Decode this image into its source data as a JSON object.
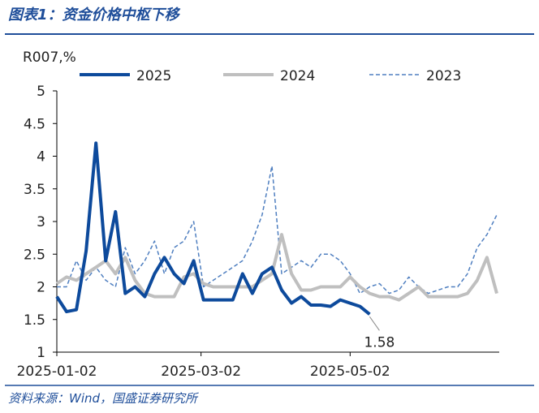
{
  "chart_data": {
    "type": "line",
    "title": "图表1：资金价格中枢下移",
    "y_label": "R007,%",
    "source": "资料来源：Wind，国盛证券研究所",
    "annotation": {
      "text": "1.58",
      "series": 0,
      "index": 32
    },
    "x": [
      "2025-01-02",
      "2025-01-06",
      "2025-01-10",
      "2025-01-14",
      "2025-01-18",
      "2025-01-22",
      "2025-01-26",
      "2025-01-30",
      "2025-02-03",
      "2025-02-07",
      "2025-02-11",
      "2025-02-15",
      "2025-02-19",
      "2025-02-23",
      "2025-02-27",
      "2025-03-03",
      "2025-03-07",
      "2025-03-11",
      "2025-03-15",
      "2025-03-19",
      "2025-03-23",
      "2025-03-27",
      "2025-03-31",
      "2025-04-04",
      "2025-04-08",
      "2025-04-12",
      "2025-04-16",
      "2025-04-20",
      "2025-04-24",
      "2025-04-28",
      "2025-05-02",
      "2025-05-06",
      "2025-05-10",
      "2025-05-14",
      "2025-05-18",
      "2025-05-22",
      "2025-05-26",
      "2025-05-30",
      "2025-06-03",
      "2025-06-07",
      "2025-06-11",
      "2025-06-15",
      "2025-06-19",
      "2025-06-23",
      "2025-06-27",
      "2025-07-01"
    ],
    "xlim": [
      "2025-01-02",
      "2025-07-02"
    ],
    "xticks": [
      "2025-01-02",
      "2025-03-02",
      "2025-05-02"
    ],
    "ylim": [
      1,
      5
    ],
    "yticks": [
      1,
      1.5,
      2,
      2.5,
      3,
      3.5,
      4,
      4.5,
      5
    ],
    "series": [
      {
        "name": "2025",
        "color": "#0d4a9c",
        "dash": false,
        "width": 4,
        "values": [
          1.85,
          1.62,
          1.65,
          2.55,
          4.2,
          2.4,
          3.15,
          1.9,
          2.0,
          1.85,
          2.2,
          2.45,
          2.2,
          2.05,
          2.4,
          1.8,
          1.8,
          1.8,
          1.8,
          2.2,
          1.9,
          2.2,
          2.3,
          1.95,
          1.75,
          1.85,
          1.72,
          1.72,
          1.7,
          1.8,
          1.75,
          1.7,
          1.58,
          null,
          null,
          null,
          null,
          null,
          null,
          null,
          null,
          null,
          null,
          null,
          null,
          null
        ]
      },
      {
        "name": "2024",
        "color": "#bfbfbf",
        "dash": false,
        "width": 4,
        "values": [
          2.05,
          2.15,
          2.1,
          2.2,
          2.3,
          2.4,
          2.2,
          2.45,
          2.1,
          1.9,
          1.85,
          1.85,
          1.85,
          2.15,
          2.2,
          2.05,
          2.0,
          2.0,
          2.0,
          2.0,
          2.0,
          2.1,
          2.2,
          2.8,
          2.2,
          1.95,
          1.95,
          2.0,
          2.0,
          2.0,
          2.15,
          2.0,
          1.9,
          1.85,
          1.85,
          1.8,
          1.9,
          2.0,
          1.85,
          1.85,
          1.85,
          1.85,
          1.9,
          2.1,
          2.45,
          1.9
        ]
      },
      {
        "name": "2023",
        "color": "#4f7fc0",
        "dash": true,
        "width": 1.5,
        "values": [
          2.0,
          2.0,
          2.4,
          2.1,
          2.3,
          2.1,
          2.0,
          2.6,
          2.2,
          2.4,
          2.7,
          2.2,
          2.6,
          2.7,
          3.0,
          2.0,
          2.1,
          2.2,
          2.3,
          2.4,
          2.7,
          3.1,
          3.85,
          2.2,
          2.3,
          2.4,
          2.3,
          2.5,
          2.5,
          2.4,
          2.2,
          1.9,
          2.0,
          2.05,
          1.9,
          1.95,
          2.15,
          2.0,
          1.9,
          1.95,
          2.0,
          2.0,
          2.2,
          2.6,
          2.8,
          3.1
        ]
      }
    ]
  }
}
